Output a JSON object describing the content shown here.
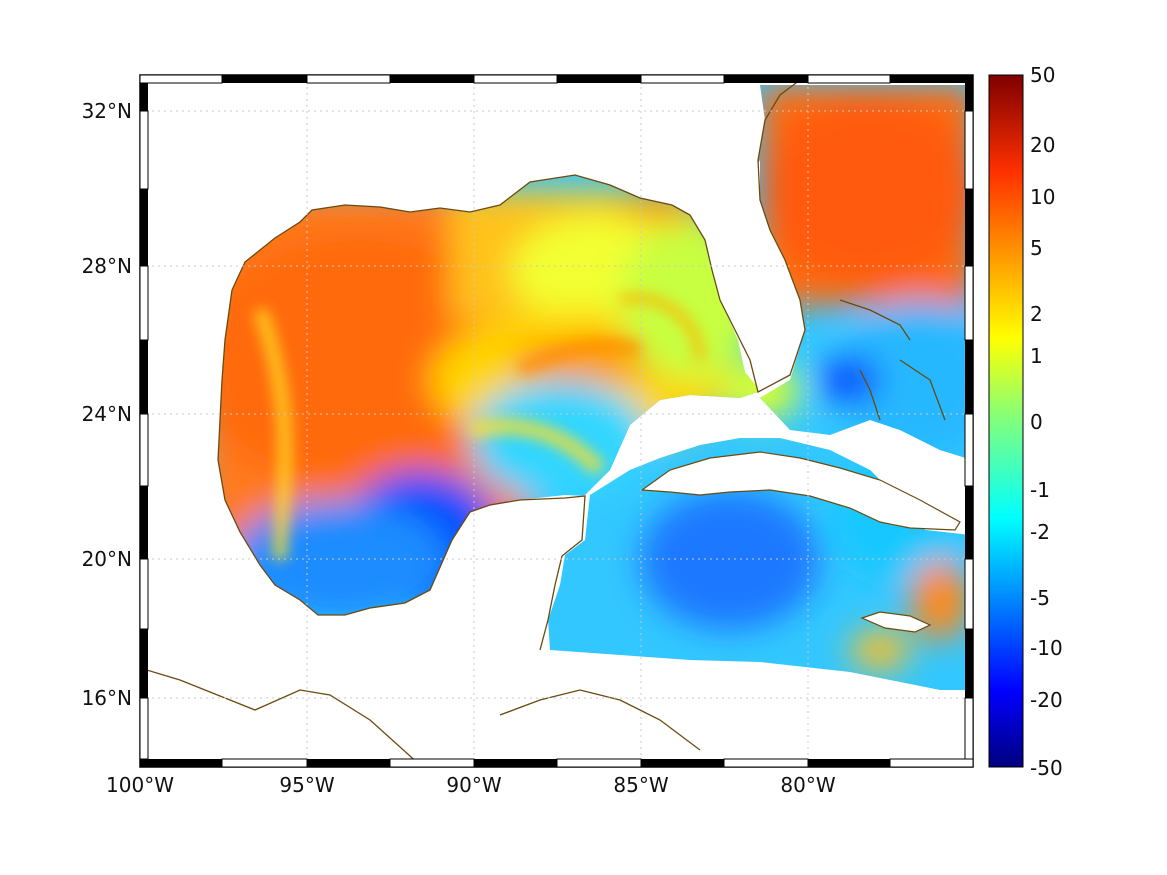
{
  "map": {
    "lon_range": [
      -100,
      -75
    ],
    "lat_range": [
      14.5,
      33
    ],
    "graticule": "dotted",
    "x_ticks": [
      {
        "lon": -100,
        "label": "100°W"
      },
      {
        "lon": -95,
        "label": "95°W"
      },
      {
        "lon": -90,
        "label": "90°W"
      },
      {
        "lon": -85,
        "label": "85°W"
      },
      {
        "lon": -80,
        "label": "80°W"
      }
    ],
    "y_ticks": [
      {
        "lat": 32,
        "label": "32°N"
      },
      {
        "lat": 28,
        "label": "28°N"
      },
      {
        "lat": 24,
        "label": "24°N"
      },
      {
        "lat": 20,
        "label": "20°N"
      },
      {
        "lat": 16,
        "label": "16°N"
      }
    ],
    "coast_color": "#6b4a10",
    "land_color": "#ffffff",
    "frame": "black-white-checkered"
  },
  "colorbar": {
    "colormap": "jet",
    "range": [
      -50,
      50
    ],
    "ticks": [
      "50",
      "20",
      "10",
      "5",
      "2",
      "1",
      "0",
      "-1",
      "-2",
      "-5",
      "-10",
      "-20",
      "-50"
    ]
  }
}
